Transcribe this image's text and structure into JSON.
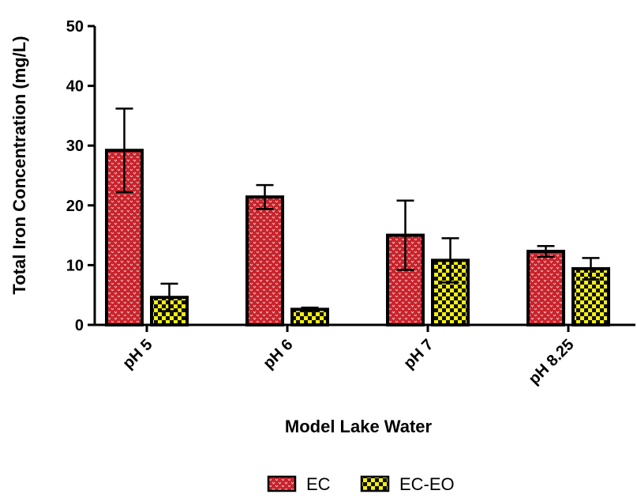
{
  "chart_data": {
    "type": "bar",
    "categories": [
      "pH 5",
      "pH 6",
      "pH 7",
      "pH 8.25"
    ],
    "series": [
      {
        "name": "EC",
        "values": [
          29.2,
          21.4,
          15.0,
          12.3
        ],
        "errors": [
          7.0,
          2.0,
          5.8,
          0.9
        ],
        "color": "#c8232c",
        "pattern": "dots"
      },
      {
        "name": "EC-EO",
        "values": [
          4.6,
          2.6,
          10.8,
          9.4
        ],
        "errors": [
          2.3,
          0.3,
          3.7,
          1.8
        ],
        "color": "#f5f00a",
        "pattern": "checker"
      }
    ],
    "xlabel": "Model Lake Water",
    "ylabel": "Total Iron Concentration (mg/L)",
    "ylim": [
      0,
      50
    ],
    "yticks": [
      0,
      10,
      20,
      30,
      40,
      50
    ],
    "grid": false,
    "legend_position": "bottom"
  }
}
